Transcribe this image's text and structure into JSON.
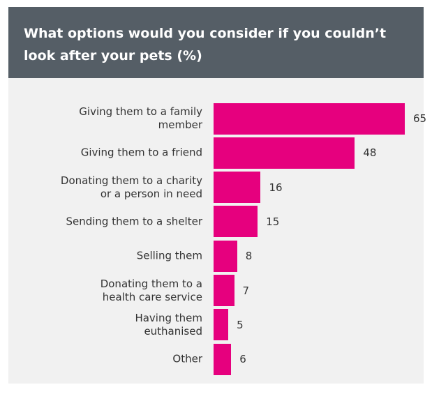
{
  "chart_data": {
    "type": "bar",
    "orientation": "horizontal",
    "title": "What options would you consider if you couldn’t look after your pets (%)",
    "categories": [
      "Giving them to a family\nmember",
      "Giving them to a friend",
      "Donating them to a charity\nor a person in need",
      "Sending them to a shelter",
      "Selling them",
      "Donating them to a\nhealth care service",
      "Having them\neuthanised",
      "Other"
    ],
    "values": [
      65,
      48,
      16,
      15,
      8,
      7,
      5,
      6
    ],
    "color": "#e6007e"
  }
}
